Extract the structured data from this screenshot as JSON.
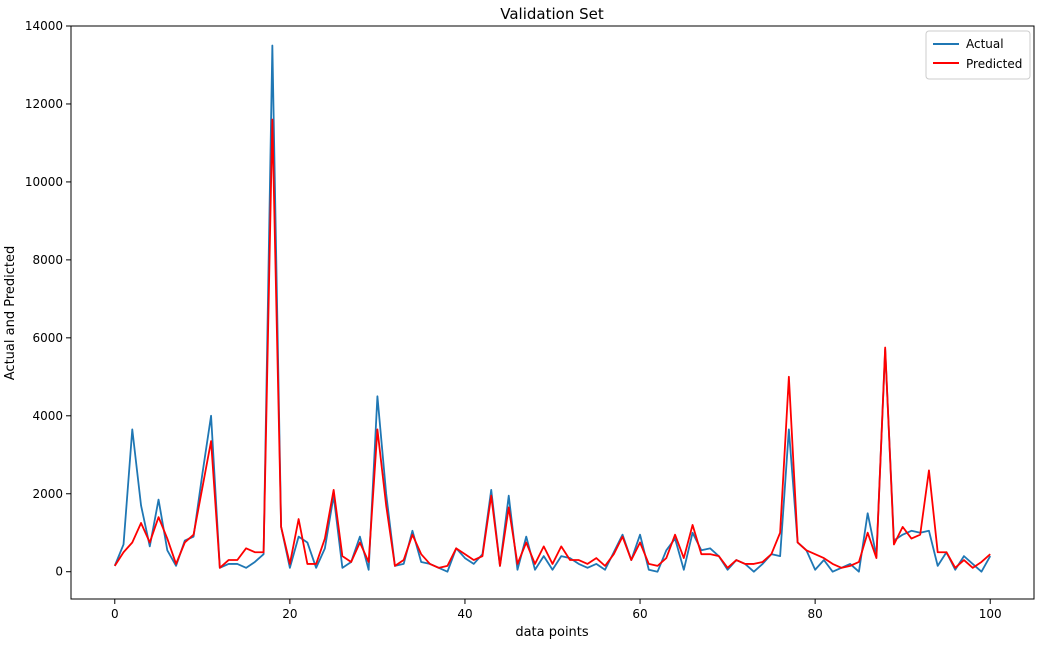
{
  "chart_data": {
    "type": "line",
    "title": "Validation Set",
    "xlabel": "data points",
    "ylabel": "Actual and Predicted",
    "xlim": [
      -5,
      105
    ],
    "ylim": [
      -700,
      14000
    ],
    "x_ticks": [
      0,
      20,
      40,
      60,
      80,
      100
    ],
    "y_ticks": [
      0,
      2000,
      4000,
      6000,
      8000,
      10000,
      12000,
      14000
    ],
    "legend_position": "top-right",
    "grid": false,
    "series": [
      {
        "name": "Actual",
        "color": "#1f77b4",
        "values": [
          150,
          700,
          3650,
          1700,
          650,
          1850,
          550,
          150,
          800,
          900,
          2500,
          4000,
          100,
          200,
          200,
          100,
          250,
          450,
          13500,
          1150,
          100,
          900,
          750,
          100,
          600,
          1950,
          100,
          250,
          900,
          50,
          4500,
          2000,
          150,
          200,
          1050,
          250,
          200,
          100,
          0,
          600,
          350,
          200,
          450,
          2100,
          150,
          1950,
          50,
          900,
          50,
          400,
          50,
          400,
          350,
          200,
          100,
          200,
          50,
          500,
          950,
          300,
          950,
          50,
          0,
          550,
          850,
          50,
          1000,
          550,
          600,
          400,
          50,
          300,
          200,
          0,
          200,
          450,
          400,
          3650,
          750,
          550,
          50,
          300,
          0,
          100,
          200,
          0,
          1500,
          400,
          5700,
          800,
          950,
          1050,
          1000,
          1050,
          150,
          500,
          50,
          400,
          200,
          0,
          400
        ]
      },
      {
        "name": "Predicted",
        "color": "#ff0000",
        "values": [
          150,
          500,
          750,
          1250,
          750,
          1400,
          850,
          200,
          750,
          950,
          2150,
          3350,
          100,
          300,
          300,
          600,
          500,
          500,
          11600,
          1150,
          200,
          1350,
          200,
          200,
          850,
          2100,
          400,
          250,
          750,
          250,
          3650,
          1700,
          150,
          300,
          950,
          450,
          200,
          100,
          150,
          600,
          450,
          300,
          400,
          1950,
          150,
          1650,
          200,
          750,
          200,
          650,
          200,
          650,
          300,
          300,
          200,
          350,
          150,
          450,
          900,
          300,
          750,
          200,
          150,
          350,
          950,
          350,
          1200,
          450,
          450,
          400,
          100,
          300,
          200,
          200,
          250,
          450,
          1000,
          5000,
          750,
          550,
          450,
          350,
          200,
          100,
          150,
          250,
          1000,
          350,
          5750,
          700,
          1150,
          850,
          950,
          2600,
          500,
          500,
          100,
          300,
          100,
          250,
          450
        ]
      }
    ]
  }
}
